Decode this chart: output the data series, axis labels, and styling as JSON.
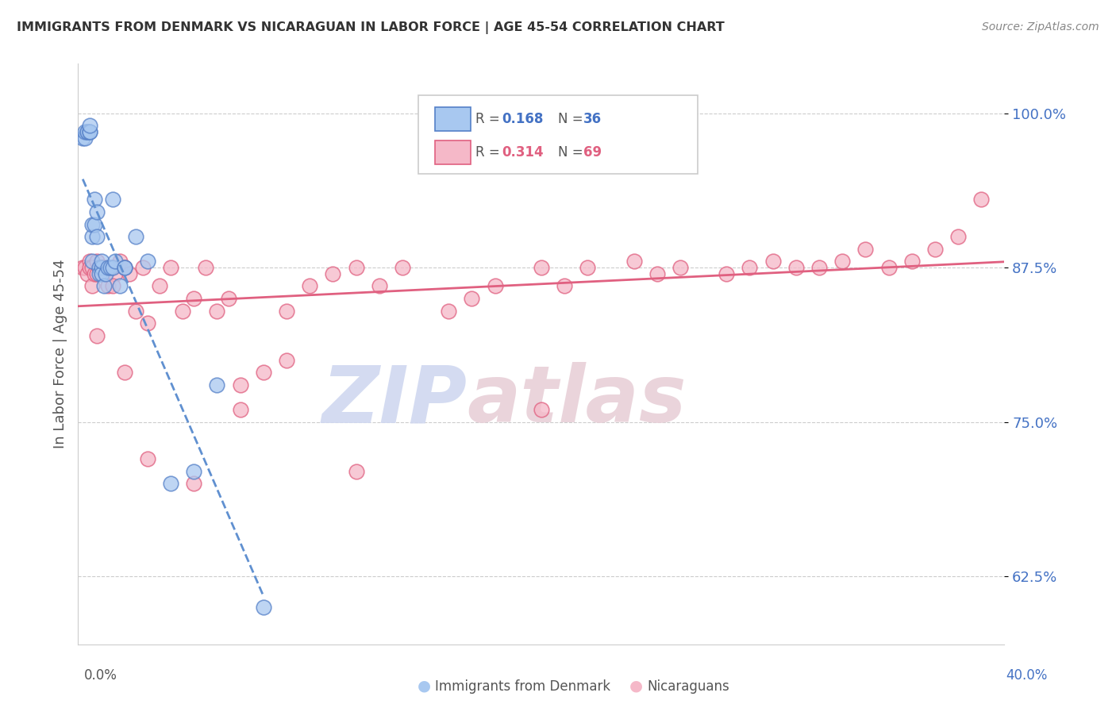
{
  "title": "IMMIGRANTS FROM DENMARK VS NICARAGUAN IN LABOR FORCE | AGE 45-54 CORRELATION CHART",
  "source": "Source: ZipAtlas.com",
  "ylabel": "In Labor Force | Age 45-54",
  "ytick_positions": [
    0.625,
    0.75,
    0.875,
    1.0
  ],
  "ytick_labels": [
    "62.5%",
    "75.0%",
    "87.5%",
    "100.0%"
  ],
  "xlim": [
    0.0,
    0.4
  ],
  "ylim": [
    0.57,
    1.04
  ],
  "legend_r1": "0.168",
  "legend_n1": "36",
  "legend_r2": "0.314",
  "legend_n2": "69",
  "color_denmark_fill": "#a8c8f0",
  "color_denmark_edge": "#5580c8",
  "color_nicaragua_fill": "#f5b8c8",
  "color_nicaragua_edge": "#e06080",
  "color_denmark_trendline": "#6090d0",
  "color_nicaragua_trendline": "#e06080",
  "watermark_zip": "ZIP",
  "watermark_atlas": "atlas",
  "dk_x": [
    0.002,
    0.003,
    0.003,
    0.004,
    0.004,
    0.005,
    0.005,
    0.005,
    0.006,
    0.006,
    0.006,
    0.007,
    0.007,
    0.008,
    0.008,
    0.009,
    0.009,
    0.01,
    0.01,
    0.01,
    0.011,
    0.012,
    0.013,
    0.014,
    0.015,
    0.016,
    0.018,
    0.02,
    0.025,
    0.03,
    0.04,
    0.05,
    0.06,
    0.08,
    0.015,
    0.02
  ],
  "dk_y": [
    0.98,
    0.98,
    0.985,
    0.985,
    0.985,
    0.985,
    0.985,
    0.99,
    0.88,
    0.9,
    0.91,
    0.91,
    0.93,
    0.9,
    0.92,
    0.875,
    0.87,
    0.875,
    0.87,
    0.88,
    0.86,
    0.87,
    0.875,
    0.875,
    0.875,
    0.88,
    0.86,
    0.875,
    0.9,
    0.88,
    0.7,
    0.71,
    0.78,
    0.6,
    0.93,
    0.875
  ],
  "ni_x": [
    0.002,
    0.003,
    0.004,
    0.005,
    0.005,
    0.006,
    0.006,
    0.007,
    0.008,
    0.008,
    0.009,
    0.01,
    0.01,
    0.011,
    0.012,
    0.013,
    0.015,
    0.016,
    0.018,
    0.02,
    0.022,
    0.025,
    0.028,
    0.03,
    0.035,
    0.04,
    0.045,
    0.05,
    0.055,
    0.06,
    0.065,
    0.07,
    0.08,
    0.09,
    0.1,
    0.11,
    0.12,
    0.13,
    0.14,
    0.16,
    0.17,
    0.18,
    0.2,
    0.21,
    0.22,
    0.24,
    0.25,
    0.26,
    0.28,
    0.29,
    0.3,
    0.31,
    0.32,
    0.33,
    0.34,
    0.35,
    0.36,
    0.37,
    0.38,
    0.39,
    0.008,
    0.015,
    0.02,
    0.03,
    0.05,
    0.07,
    0.09,
    0.12,
    0.2
  ],
  "ni_y": [
    0.875,
    0.875,
    0.87,
    0.88,
    0.875,
    0.875,
    0.86,
    0.87,
    0.87,
    0.88,
    0.875,
    0.875,
    0.87,
    0.875,
    0.87,
    0.86,
    0.875,
    0.87,
    0.88,
    0.875,
    0.87,
    0.84,
    0.875,
    0.83,
    0.86,
    0.875,
    0.84,
    0.85,
    0.875,
    0.84,
    0.85,
    0.78,
    0.79,
    0.84,
    0.86,
    0.87,
    0.875,
    0.86,
    0.875,
    0.84,
    0.85,
    0.86,
    0.875,
    0.86,
    0.875,
    0.88,
    0.87,
    0.875,
    0.87,
    0.875,
    0.88,
    0.875,
    0.875,
    0.88,
    0.89,
    0.875,
    0.88,
    0.89,
    0.9,
    0.93,
    0.82,
    0.86,
    0.79,
    0.72,
    0.7,
    0.76,
    0.8,
    0.71,
    0.76
  ]
}
